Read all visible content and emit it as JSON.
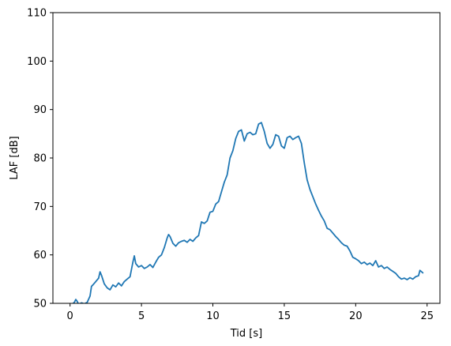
{
  "chart_data": {
    "type": "line",
    "title": "",
    "xlabel": "Tid [s]",
    "ylabel": "LAF [dB]",
    "xlim": [
      -1.2,
      25.9
    ],
    "ylim": [
      50,
      110
    ],
    "grid": false,
    "legend": "none",
    "x_ticks": [
      0,
      5,
      10,
      15,
      20,
      25
    ],
    "y_ticks": [
      50,
      60,
      70,
      80,
      90,
      100,
      110
    ],
    "x_tick_labels": [
      "0",
      "5",
      "10",
      "15",
      "20",
      "25"
    ],
    "y_tick_labels": [
      "50",
      "60",
      "70",
      "80",
      "90",
      "100",
      "110"
    ],
    "colors": {
      "line": "#1f77b4",
      "axes": "#000000",
      "background": "#ffffff"
    },
    "series": [
      {
        "x": [
          0.0,
          0.3,
          0.4,
          0.5,
          0.6,
          0.8,
          1.0,
          1.2,
          1.4,
          1.5,
          1.6,
          1.8,
          2.0,
          2.1,
          2.2,
          2.4,
          2.6,
          2.8,
          3.0,
          3.2,
          3.4,
          3.6,
          3.8,
          4.0,
          4.2,
          4.4,
          4.5,
          4.6,
          4.8,
          5.0,
          5.2,
          5.4,
          5.6,
          5.8,
          6.0,
          6.2,
          6.4,
          6.6,
          6.8,
          6.9,
          7.0,
          7.2,
          7.4,
          7.6,
          7.8,
          8.0,
          8.2,
          8.4,
          8.6,
          8.8,
          9.0,
          9.2,
          9.4,
          9.6,
          9.8,
          10.0,
          10.2,
          10.4,
          10.6,
          10.8,
          11.0,
          11.2,
          11.4,
          11.6,
          11.8,
          12.0,
          12.2,
          12.4,
          12.6,
          12.8,
          13.0,
          13.2,
          13.4,
          13.6,
          13.8,
          14.0,
          14.2,
          14.4,
          14.6,
          14.8,
          15.0,
          15.2,
          15.4,
          15.6,
          15.8,
          16.0,
          16.2,
          16.4,
          16.6,
          16.8,
          17.0,
          17.2,
          17.4,
          17.6,
          17.8,
          18.0,
          18.2,
          18.4,
          18.6,
          18.8,
          19.0,
          19.2,
          19.4,
          19.6,
          19.8,
          20.0,
          20.2,
          20.4,
          20.6,
          20.8,
          21.0,
          21.2,
          21.4,
          21.6,
          21.8,
          22.0,
          22.2,
          22.4,
          22.6,
          22.8,
          23.0,
          23.2,
          23.4,
          23.6,
          23.8,
          24.0,
          24.2,
          24.4,
          24.5,
          24.7
        ],
        "y": [
          49.5,
          50.2,
          50.8,
          50.4,
          49.8,
          50.1,
          49.9,
          50.2,
          51.5,
          53.5,
          53.8,
          54.5,
          55.2,
          56.5,
          55.8,
          54.0,
          53.2,
          52.8,
          53.8,
          53.4,
          54.2,
          53.6,
          54.5,
          55.0,
          55.5,
          58.5,
          59.8,
          58.2,
          57.5,
          57.8,
          57.2,
          57.5,
          58.0,
          57.4,
          58.5,
          59.5,
          60.0,
          61.5,
          63.5,
          64.2,
          63.8,
          62.4,
          61.8,
          62.5,
          62.8,
          63.0,
          62.6,
          63.2,
          62.8,
          63.5,
          64.0,
          66.8,
          66.5,
          67.0,
          68.8,
          69.0,
          70.5,
          71.0,
          73.0,
          75.0,
          76.5,
          80.0,
          81.5,
          84.0,
          85.5,
          85.8,
          83.5,
          85.0,
          85.3,
          84.8,
          85.0,
          87.0,
          87.3,
          85.5,
          83.0,
          82.0,
          82.8,
          84.8,
          84.5,
          82.5,
          82.0,
          84.2,
          84.5,
          83.8,
          84.2,
          84.5,
          83.0,
          79.0,
          75.5,
          73.5,
          72.0,
          70.5,
          69.2,
          68.0,
          67.0,
          65.5,
          65.2,
          64.5,
          63.8,
          63.2,
          62.5,
          62.0,
          61.8,
          60.8,
          59.5,
          59.2,
          58.8,
          58.2,
          58.5,
          58.0,
          58.3,
          57.8,
          58.8,
          57.5,
          57.8,
          57.2,
          57.5,
          57.0,
          56.6,
          56.2,
          55.5,
          55.0,
          55.2,
          54.9,
          55.3,
          55.0,
          55.5,
          55.7,
          56.8,
          56.3
        ]
      }
    ]
  }
}
